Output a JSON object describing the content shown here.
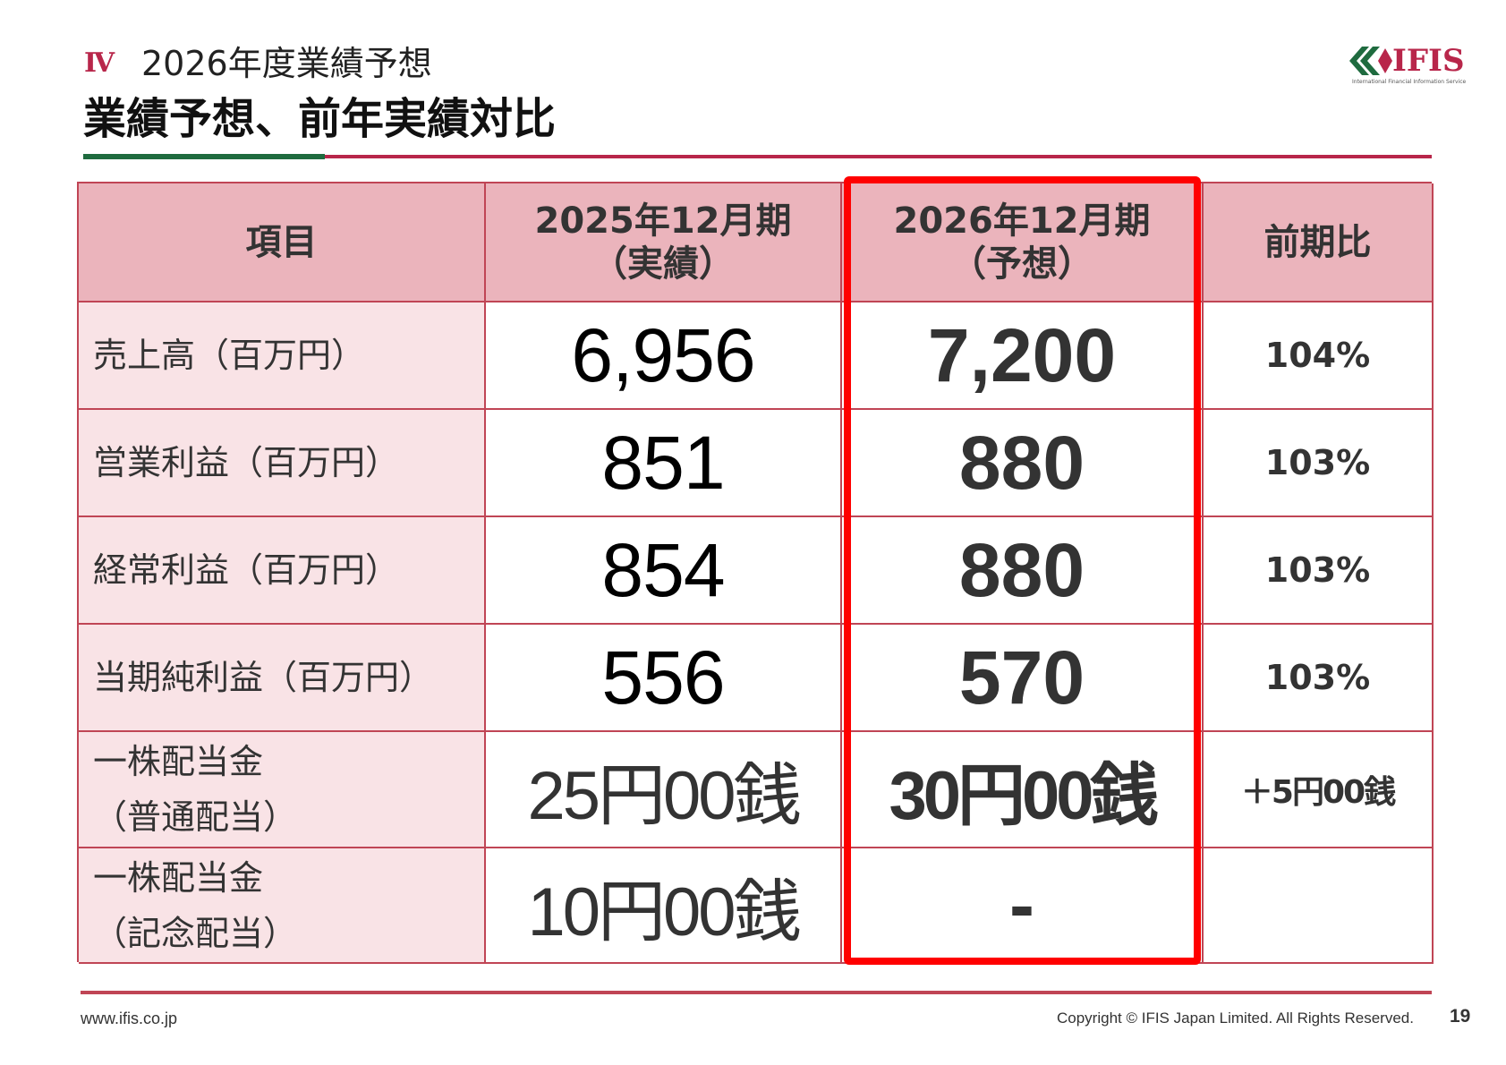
{
  "header": {
    "section_number": "Ⅳ",
    "section_title": "2026年度業績予想",
    "page_title": "業績予想、前年実績対比"
  },
  "logo": {
    "text": "IFIS",
    "subtitle": "International Financial Information Service"
  },
  "table": {
    "headers": {
      "item": "項目",
      "prev_line1": "2025年12月期",
      "prev_line2": "（実績）",
      "fcst_line1": "2026年12月期",
      "fcst_line2": "（予想）",
      "ratio": "前期比"
    },
    "rows": [
      {
        "label": "売上高（百万円）",
        "prev": "6,956",
        "forecast": "7,200",
        "ratio": "104%"
      },
      {
        "label": "営業利益（百万円）",
        "prev": "851",
        "forecast": "880",
        "ratio": "103%"
      },
      {
        "label": "経常利益（百万円）",
        "prev": "854",
        "forecast": "880",
        "ratio": "103%"
      },
      {
        "label": "当期純利益（百万円）",
        "prev": "556",
        "forecast": "570",
        "ratio": "103%"
      },
      {
        "label_line1": "一株配当金",
        "label_line2": "（普通配当）",
        "prev": "25円00銭",
        "forecast": "30円00銭",
        "ratio": "＋5円00銭"
      },
      {
        "label_line1": "一株配当金",
        "label_line2": "（記念配当）",
        "prev": "10円00銭",
        "forecast": "-",
        "ratio": ""
      }
    ]
  },
  "colors": {
    "accent_red": "#b8264a",
    "accent_green": "#1f6b3f",
    "header_bg": "#ebb4bc",
    "label_bg": "#f9e3e6",
    "highlight": "#ff0000"
  },
  "footer": {
    "url": "www.ifis.co.jp",
    "copyright": "Copyright © IFIS Japan Limited. All Rights Reserved.",
    "page_number": "19"
  }
}
